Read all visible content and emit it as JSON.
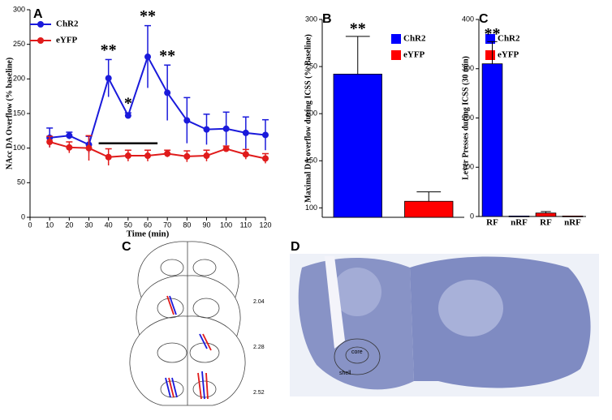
{
  "chart_data": [
    {
      "type": "line",
      "panel": "A",
      "xlabel": "Time (min)",
      "ylabel": "NAcc DA Overflow (% baseline)",
      "x": [
        10,
        20,
        30,
        40,
        50,
        60,
        70,
        80,
        90,
        100,
        110,
        120
      ],
      "series": [
        {
          "name": "ChR2",
          "color": "#1a1adb",
          "values": [
            115,
            118,
            105,
            201,
            147,
            232,
            180,
            140,
            127,
            128,
            122,
            119
          ],
          "errors": [
            14,
            5,
            12,
            27,
            4,
            45,
            40,
            33,
            22,
            24,
            23,
            22
          ],
          "annotations": [
            null,
            null,
            null,
            "**",
            "*",
            "**",
            "**",
            null,
            null,
            null,
            null,
            null
          ]
        },
        {
          "name": "eYFP",
          "color": "#e01b1b",
          "values": [
            109,
            101,
            100,
            87,
            89,
            89,
            92,
            88,
            89,
            99,
            91,
            85
          ],
          "errors": [
            8,
            8,
            18,
            12,
            8,
            8,
            5,
            8,
            8,
            4,
            7,
            7
          ]
        }
      ],
      "xlim": [
        0,
        120
      ],
      "xticks": [
        0,
        10,
        20,
        30,
        40,
        50,
        60,
        70,
        80,
        90,
        100,
        110,
        120
      ],
      "ylim": [
        0,
        300
      ],
      "yticks": [
        0,
        50,
        100,
        150,
        200,
        250,
        300
      ]
    },
    {
      "type": "bar",
      "panel": "B",
      "ylabel": "Maximal DA overflow during ICSS (% Baseline)",
      "categories": [
        null
      ],
      "series": [
        {
          "name": "ChR2",
          "color": "#0000ff",
          "values": [
            242
          ],
          "errors": [
            40
          ],
          "annotations": [
            "**"
          ]
        },
        {
          "name": "eYFP",
          "color": "#ff0000",
          "values": [
            107
          ],
          "errors": [
            10
          ]
        }
      ],
      "ylim": [
        90,
        300
      ],
      "yticks": [
        100,
        150,
        200,
        250,
        300
      ]
    },
    {
      "type": "bar",
      "panel": "C",
      "ylabel": "Lever Presses during ICSS (30 min)",
      "categories": [
        "RF",
        "nRF",
        "RF",
        "nRF"
      ],
      "series": [
        {
          "name": "ChR2",
          "color": "#0000ff",
          "values": [
            310,
            1,
            null,
            null
          ],
          "errors": [
            45,
            null,
            null,
            null
          ],
          "annotations": [
            "**",
            null,
            null,
            null
          ]
        },
        {
          "name": "eYFP",
          "color": "#ff0000",
          "values": [
            null,
            null,
            7,
            1
          ],
          "errors": [
            null,
            null,
            3,
            null
          ]
        }
      ],
      "ylim": [
        0,
        400
      ],
      "yticks": [
        0,
        100,
        200,
        300,
        400
      ]
    }
  ],
  "atlas": {
    "panel": "C",
    "levels": [
      "2.04",
      "2.28",
      "2.52"
    ]
  },
  "histology": {
    "panel": "D",
    "regions": [
      "core",
      "shell"
    ]
  }
}
